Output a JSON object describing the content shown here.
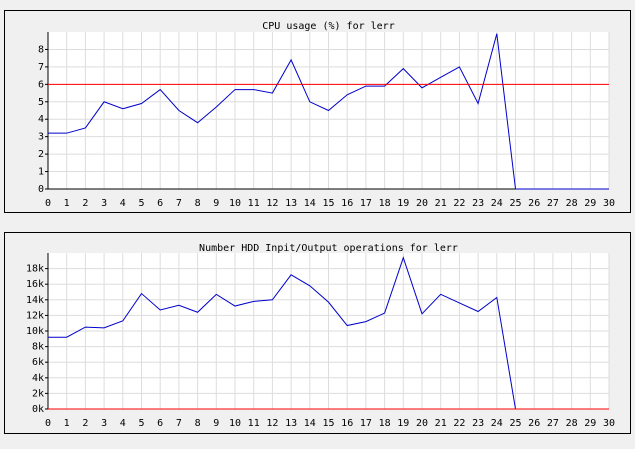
{
  "chart_data": [
    {
      "type": "line",
      "title": "CPU usage (%) for lerr",
      "x": [
        0,
        1,
        2,
        3,
        4,
        5,
        6,
        7,
        8,
        9,
        10,
        11,
        12,
        13,
        14,
        15,
        16,
        17,
        18,
        19,
        20,
        21,
        22,
        23,
        24,
        25,
        26,
        27,
        28,
        29,
        30
      ],
      "series": [
        {
          "color": "#0000cc",
          "values": [
            3.2,
            3.2,
            3.5,
            5.0,
            4.6,
            4.9,
            5.7,
            4.5,
            3.8,
            4.7,
            5.7,
            5.7,
            5.5,
            7.4,
            5.0,
            4.5,
            5.4,
            5.9,
            5.9,
            6.9,
            5.8,
            6.4,
            7.0,
            4.9,
            8.9,
            0,
            0,
            0,
            0,
            0,
            0
          ]
        }
      ],
      "threshold": 6,
      "threshold_color": "#ff0000",
      "xlim": [
        0,
        30
      ],
      "xticks": [
        0,
        1,
        2,
        3,
        4,
        5,
        6,
        7,
        8,
        9,
        10,
        11,
        12,
        13,
        14,
        15,
        16,
        17,
        18,
        19,
        20,
        21,
        22,
        23,
        24,
        25,
        26,
        27,
        28,
        29,
        30
      ],
      "ylim": [
        0,
        9
      ],
      "yticks": [
        0,
        1,
        2,
        3,
        4,
        5,
        6,
        7,
        8
      ],
      "grid": true
    },
    {
      "type": "line",
      "title": "Number HDD Inpit/Output operations for lerr",
      "x": [
        0,
        1,
        2,
        3,
        4,
        5,
        6,
        7,
        8,
        9,
        10,
        11,
        12,
        13,
        14,
        15,
        16,
        17,
        18,
        19,
        20,
        21,
        22,
        23,
        24,
        25,
        26,
        27,
        28,
        29,
        30
      ],
      "series": [
        {
          "color": "#0000cc",
          "values": [
            9200,
            9200,
            10500,
            10400,
            11300,
            14800,
            12700,
            13300,
            12400,
            14700,
            13200,
            13800,
            14000,
            17200,
            15800,
            13700,
            10700,
            11200,
            12300,
            19400,
            12200,
            14700,
            13600,
            12500,
            14300,
            0,
            0,
            0,
            0,
            0,
            0
          ]
        }
      ],
      "threshold": 0,
      "threshold_color": "#ff0000",
      "xlim": [
        0,
        30
      ],
      "xticks": [
        0,
        1,
        2,
        3,
        4,
        5,
        6,
        7,
        8,
        9,
        10,
        11,
        12,
        13,
        14,
        15,
        16,
        17,
        18,
        19,
        20,
        21,
        22,
        23,
        24,
        25,
        26,
        27,
        28,
        29,
        30
      ],
      "ylim": [
        0,
        20000
      ],
      "yticks": [
        {
          "value": 0,
          "label": "0k"
        },
        {
          "value": 2000,
          "label": "2k"
        },
        {
          "value": 4000,
          "label": "4k"
        },
        {
          "value": 6000,
          "label": "6k"
        },
        {
          "value": 8000,
          "label": "8k"
        },
        {
          "value": 10000,
          "label": "10k"
        },
        {
          "value": 12000,
          "label": "12k"
        },
        {
          "value": 14000,
          "label": "14k"
        },
        {
          "value": 16000,
          "label": "16k"
        },
        {
          "value": 18000,
          "label": "18k"
        }
      ],
      "grid": true
    }
  ]
}
